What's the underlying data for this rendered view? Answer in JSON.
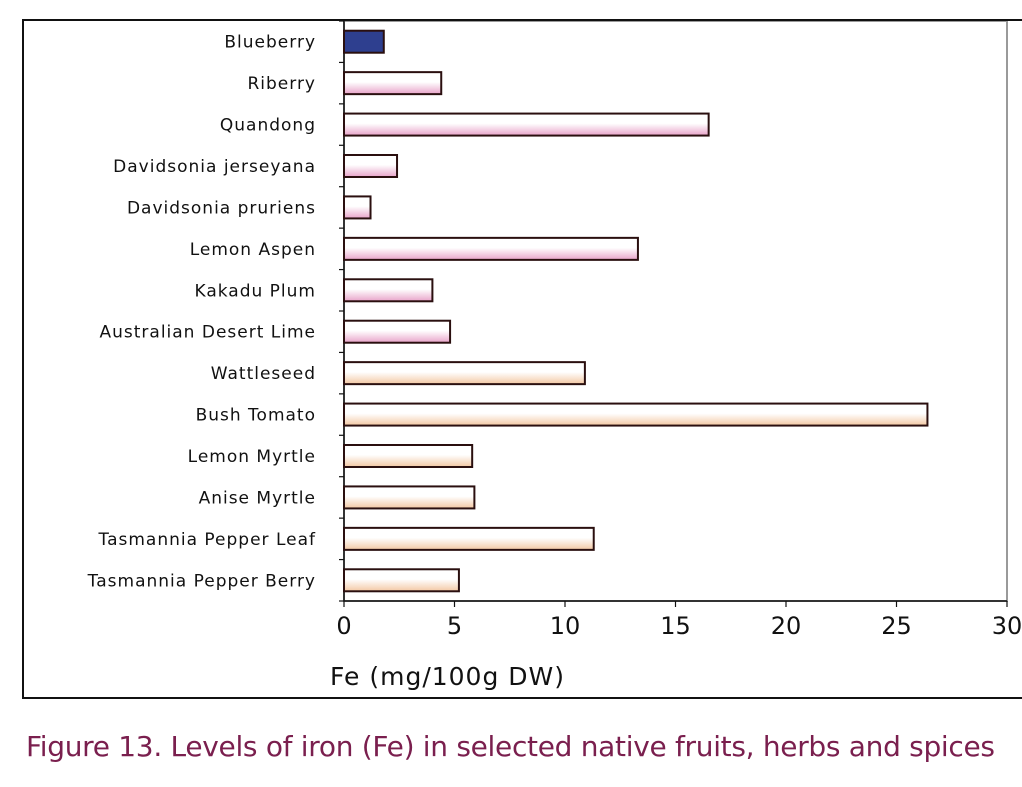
{
  "figure_caption": "Figure 13. Levels of iron (Fe) in selected native fruits, herbs and spices",
  "colors": {
    "highlight": "#2e3f8f",
    "fruit_mid": "#e8a3c9",
    "herb_mid": "#f3c8a3",
    "bar_stroke": "#2a0f0f",
    "caption": "#7a1f4e"
  },
  "chart_data": {
    "type": "bar",
    "orientation": "horizontal",
    "title": "",
    "xlabel": "Fe (mg/100g DW)",
    "ylabel": "",
    "xlim": [
      0,
      30
    ],
    "xticks": [
      0,
      5,
      10,
      15,
      20,
      25,
      30
    ],
    "grid": false,
    "categories": [
      "Blueberry",
      "Riberry",
      "Quandong",
      "Davidsonia jerseyana",
      "Davidsonia pruriens",
      "Lemon Aspen",
      "Kakadu Plum",
      "Australian Desert Lime",
      "Wattleseed",
      "Bush Tomato",
      "Lemon Myrtle",
      "Anise Myrtle",
      "Tasmannia Pepper Leaf",
      "Tasmannia Pepper Berry"
    ],
    "values": [
      1.8,
      4.4,
      16.5,
      2.4,
      1.2,
      13.3,
      4.0,
      4.8,
      10.9,
      26.4,
      5.8,
      5.9,
      11.3,
      5.2
    ],
    "groups": [
      "reference",
      "fruit",
      "fruit",
      "fruit",
      "fruit",
      "fruit",
      "fruit",
      "fruit",
      "herb_spice",
      "herb_spice",
      "herb_spice",
      "herb_spice",
      "herb_spice",
      "herb_spice"
    ]
  }
}
